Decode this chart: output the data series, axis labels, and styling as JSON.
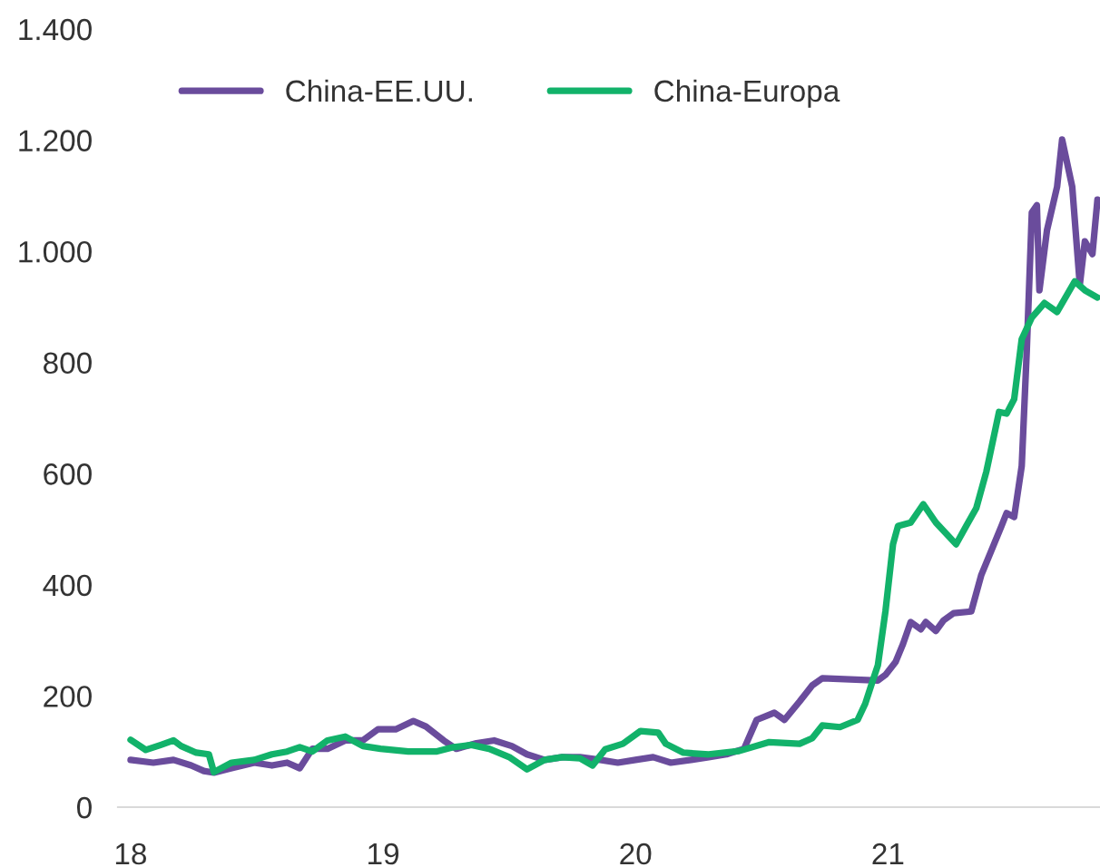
{
  "chart_data": {
    "type": "line",
    "xlim": [
      17.95,
      21.84
    ],
    "xticks": [
      18,
      19,
      20,
      21
    ],
    "ylim": [
      0,
      1400
    ],
    "yticks": [
      {
        "value": 0,
        "label": "0"
      },
      {
        "value": 200,
        "label": "200"
      },
      {
        "value": 400,
        "label": "400"
      },
      {
        "value": 600,
        "label": "600"
      },
      {
        "value": 800,
        "label": "800"
      },
      {
        "value": 1000,
        "label": "1.000"
      },
      {
        "value": 1200,
        "label": "1.200"
      },
      {
        "value": 1400,
        "label": "1.400"
      }
    ],
    "grid": false,
    "legend": "top",
    "marker": "none",
    "line_style": "solid",
    "series": [
      {
        "name": "China-EE.UU.",
        "color": "#6a4c9c",
        "x": [
          18.0,
          18.09,
          18.17,
          18.24,
          18.29,
          18.33,
          18.4,
          18.49,
          18.56,
          18.62,
          18.67,
          18.72,
          18.78,
          18.85,
          18.92,
          18.98,
          19.05,
          19.12,
          19.17,
          19.24,
          19.29,
          19.37,
          19.44,
          19.51,
          19.57,
          19.64,
          19.71,
          19.78,
          19.86,
          19.93,
          20.0,
          20.07,
          20.14,
          20.22,
          20.29,
          20.36,
          20.43,
          20.48,
          20.55,
          20.59,
          20.65,
          20.7,
          20.74,
          20.96,
          20.99,
          21.03,
          21.06,
          21.09,
          21.13,
          21.15,
          21.19,
          21.22,
          21.26,
          21.33,
          21.37,
          21.42,
          21.45,
          21.47,
          21.5,
          21.53,
          21.55,
          21.57,
          21.59,
          21.6,
          21.63,
          21.67,
          21.69,
          21.73,
          21.76,
          21.78,
          21.81,
          21.83
        ],
        "values": [
          85,
          80,
          85,
          75,
          65,
          62,
          70,
          80,
          75,
          80,
          70,
          105,
          105,
          120,
          120,
          140,
          140,
          155,
          145,
          120,
          105,
          115,
          120,
          110,
          95,
          85,
          90,
          90,
          85,
          80,
          85,
          90,
          80,
          85,
          90,
          95,
          105,
          157,
          170,
          157,
          190,
          219,
          232,
          228,
          238,
          261,
          294,
          333,
          320,
          333,
          317,
          336,
          349,
          352,
          418,
          473,
          506,
          529,
          522,
          614,
          822,
          1070,
          1083,
          930,
          1038,
          1116,
          1201,
          1116,
          940,
          1018,
          995,
          1093
        ]
      },
      {
        "name": "China-Europa",
        "color": "#12b26a",
        "x": [
          18.0,
          18.06,
          18.12,
          18.17,
          18.2,
          18.26,
          18.31,
          18.33,
          18.4,
          18.49,
          18.56,
          18.62,
          18.67,
          18.72,
          18.78,
          18.85,
          18.92,
          18.99,
          19.1,
          19.21,
          19.28,
          19.35,
          19.42,
          19.5,
          19.57,
          19.64,
          19.71,
          19.78,
          19.83,
          19.88,
          19.95,
          20.02,
          20.09,
          20.12,
          20.19,
          20.29,
          20.41,
          20.53,
          20.65,
          20.7,
          20.74,
          20.81,
          20.88,
          20.91,
          20.94,
          20.96,
          20.99,
          21.02,
          21.04,
          21.09,
          21.14,
          21.19,
          21.27,
          21.31,
          21.35,
          21.39,
          21.44,
          21.47,
          21.5,
          21.53,
          21.57,
          21.62,
          21.67,
          21.74,
          21.78,
          21.83
        ],
        "values": [
          121,
          103,
          112,
          120,
          110,
          98,
          95,
          63,
          80,
          85,
          95,
          100,
          108,
          100,
          120,
          127,
          110,
          105,
          100,
          100,
          108,
          112,
          105,
          90,
          68,
          85,
          90,
          88,
          75,
          104,
          114,
          137,
          134,
          114,
          98,
          95,
          101,
          117,
          114,
          124,
          147,
          144,
          157,
          186,
          228,
          255,
          352,
          473,
          506,
          512,
          545,
          512,
          473,
          506,
          538,
          604,
          711,
          708,
          734,
          842,
          881,
          907,
          891,
          946,
          930,
          917
        ]
      }
    ]
  }
}
